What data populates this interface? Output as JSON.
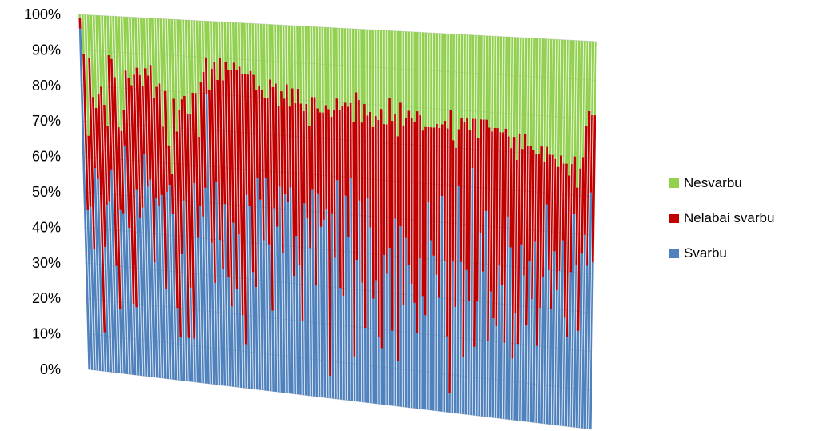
{
  "chart_data": {
    "type": "bar",
    "stacked": "percent",
    "perspective": "3d",
    "title": "",
    "xlabel": "",
    "ylabel": "",
    "ylim": [
      0,
      100
    ],
    "y_ticks": [
      "0%",
      "10%",
      "20%",
      "30%",
      "40%",
      "50%",
      "60%",
      "70%",
      "80%",
      "90%",
      "100%"
    ],
    "legend_position": "right",
    "legend": [
      "Nesvarbu",
      "Nelabai svarbu",
      "Svarbu"
    ],
    "series": [
      {
        "name": "Svarbu",
        "color": "#4f81bd",
        "values": [
          96,
          45,
          46,
          34,
          57,
          54,
          11,
          35,
          47,
          48,
          57,
          30,
          18,
          46,
          45,
          64,
          41,
          20,
          19,
          52,
          44,
          47,
          62,
          53,
          55,
          32,
          50,
          48,
          51,
          25,
          52,
          54,
          46,
          20,
          12,
          35,
          50,
          12,
          26,
          12,
          55,
          40,
          49,
          46,
          54,
          80,
          39,
          28,
          56,
          40,
          32,
          50,
          30,
          22,
          45,
          27,
          42,
          20,
          12,
          53,
          50,
          32,
          28,
          58,
          52,
          41,
          58,
          40,
          22,
          50,
          45,
          56,
          38,
          54,
          52,
          56,
          32,
          43,
          35,
          20,
          52,
          48,
          40,
          56,
          30,
          55,
          46,
          48,
          51,
          6,
          50,
          38,
          59,
          30,
          28,
          55,
          44,
          60,
          12,
          38,
          54,
          32,
          20,
          55,
          47,
          28,
          33,
          18,
          15,
          40,
          35,
          42,
          20,
          50,
          12,
          48,
          27,
          45,
          38,
          33,
          28,
          20,
          40,
          30,
          25,
          55,
          45,
          41,
          36,
          30,
          57,
          40,
          20,
          5,
          40,
          28,
          60,
          40,
          15,
          38,
          30,
          65,
          18,
          30,
          48,
          38,
          54,
          20,
          33,
          26,
          24,
          40,
          35,
          20,
          53,
          45,
          16,
          28,
          20,
          46,
          38,
          25,
          42,
          32,
          47,
          20,
          30,
          38,
          57,
          40,
          30,
          45,
          35,
          40,
          48,
          28,
          23,
          40,
          55,
          42,
          25,
          45,
          50,
          42,
          61,
          43
        ]
      },
      {
        "name": "Nelabai svarbu",
        "color": "#c00000",
        "values": [
          3,
          44,
          20,
          54,
          20,
          20,
          67,
          45,
          28,
          21,
          32,
          58,
          65,
          23,
          23,
          10,
          44,
          63,
          62,
          32,
          42,
          37,
          19,
          33,
          29,
          55,
          28,
          33,
          31,
          45,
          28,
          11,
          11,
          58,
          57,
          40,
          28,
          67,
          48,
          62,
          25,
          40,
          19,
          37,
          32,
          10,
          42,
          59,
          33,
          44,
          58,
          34,
          59,
          65,
          42,
          62,
          45,
          68,
          74,
          33,
          36,
          55,
          58,
          24,
          31,
          41,
          22,
          40,
          63,
          33,
          39,
          22,
          44,
          26,
          32,
          22,
          51,
          36,
          48,
          59,
          25,
          31,
          33,
          25,
          51,
          23,
          31,
          29,
          28,
          72,
          26,
          40,
          22,
          48,
          51,
          25,
          35,
          20,
          63,
          45,
          27,
          43,
          60,
          22,
          31,
          46,
          44,
          58,
          64,
          35,
          40,
          40,
          56,
          28,
          60,
          33,
          48,
          32,
          41,
          44,
          48,
          59,
          38,
          44,
          50,
          20,
          30,
          34,
          40,
          45,
          19,
          37,
          55,
          75,
          32,
          42,
          15,
          38,
          62,
          40,
          45,
          13,
          60,
          43,
          30,
          40,
          24,
          56,
          42,
          50,
          52,
          35,
          40,
          56,
          21,
          26,
          58,
          40,
          55,
          25,
          37,
          47,
          30,
          39,
          23,
          50,
          42,
          30,
          15,
          30,
          40,
          24,
          32,
          30,
          20,
          40,
          42,
          28,
          15,
          20,
          42,
          25,
          28,
          40,
          20,
          38
        ]
      },
      {
        "name": "Nesvarbu",
        "color": "#92d050",
        "values": [
          1,
          11,
          34,
          12,
          23,
          26,
          22,
          20,
          25,
          31,
          11,
          12,
          17,
          31,
          32,
          26,
          15,
          17,
          19,
          16,
          14,
          16,
          19,
          14,
          16,
          13,
          22,
          19,
          18,
          30,
          20,
          35,
          43,
          22,
          31,
          25,
          22,
          21,
          26,
          26,
          20,
          20,
          32,
          17,
          14,
          10,
          19,
          13,
          11,
          16,
          10,
          16,
          11,
          13,
          13,
          11,
          13,
          12,
          14,
          14,
          14,
          13,
          14,
          18,
          17,
          18,
          20,
          20,
          15,
          17,
          16,
          22,
          18,
          20,
          16,
          22,
          17,
          21,
          17,
          21,
          23,
          21,
          27,
          19,
          19,
          22,
          23,
          23,
          21,
          22,
          24,
          22,
          19,
          22,
          21,
          20,
          21,
          20,
          25,
          17,
          19,
          25,
          20,
          23,
          22,
          26,
          23,
          24,
          21,
          25,
          25,
          18,
          24,
          22,
          28,
          19,
          25,
          23,
          21,
          23,
          24,
          21,
          22,
          26,
          25,
          25,
          25,
          25,
          24,
          25,
          24,
          23,
          25,
          20,
          28,
          30,
          25,
          22,
          23,
          22,
          25,
          22,
          22,
          27,
          22,
          22,
          22,
          24,
          25,
          24,
          24,
          25,
          25,
          24,
          26,
          29,
          26,
          32,
          25,
          29,
          25,
          28,
          28,
          29,
          30,
          30,
          28,
          32,
          28,
          30,
          30,
          31,
          33,
          30,
          32,
          32,
          35,
          32,
          30,
          38,
          33,
          30,
          22,
          18,
          19,
          19
        ]
      }
    ]
  }
}
